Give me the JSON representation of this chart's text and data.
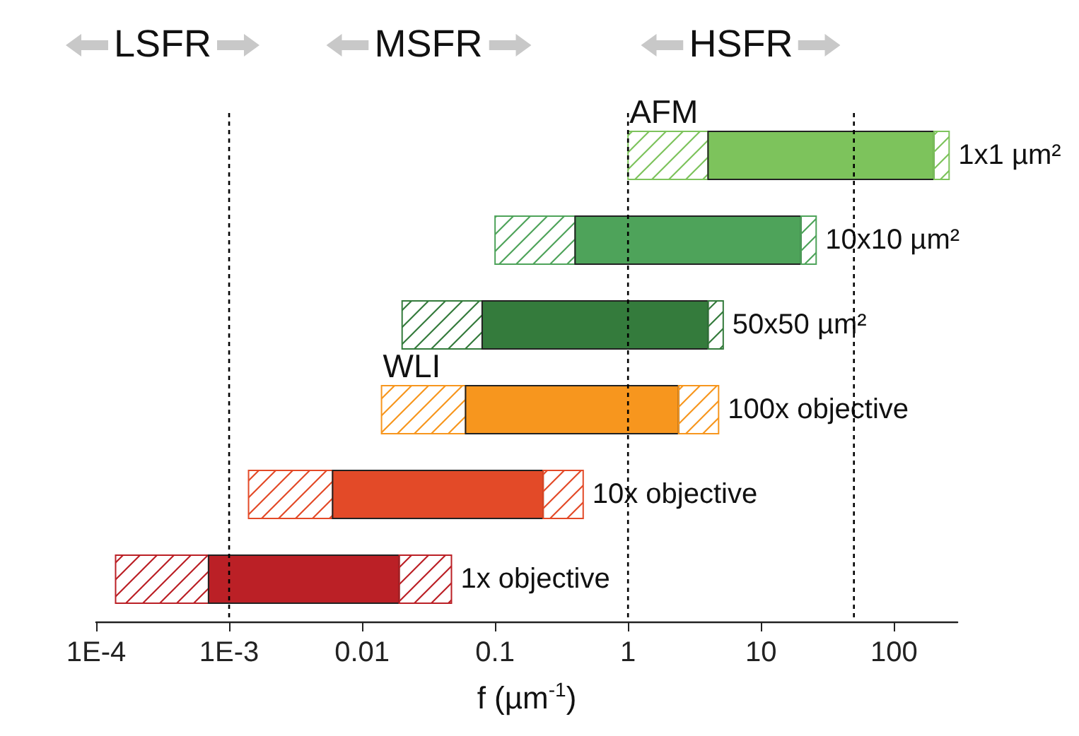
{
  "chart_data": {
    "type": "bar",
    "orientation": "horizontal",
    "categories": [
      "1x1 µm²",
      "10x10 µm²",
      "50x50 µm²",
      "100x objective",
      "10x objective",
      "1x objective"
    ],
    "series": [
      {
        "colors": [
          "#7dc35c",
          "#4ea35a",
          "#347b3c",
          "#f7961e",
          "#e34a28",
          "#bb2026"
        ],
        "base": [
          1,
          0.1,
          0.02,
          0.014,
          0.0014,
          0.00014
        ],
        "values": [
          3,
          0.3,
          0.06,
          0.046,
          0.0046,
          0.00056
        ]
      },
      {
        "colors": [
          "#7dc35c",
          "#4ea35a",
          "#347b3c",
          "#f7961e",
          "#e34a28",
          "#bb2026"
        ],
        "base": [
          4,
          0.4,
          0.08,
          0.06,
          0.006,
          0.0007
        ],
        "values": [
          196,
          19.6,
          3.92,
          2.34,
          0.224,
          0.0183
        ]
      },
      {
        "colors": [
          "#7dc35c",
          "#4ea35a",
          "#347b3c",
          "#f7961e",
          "#e34a28",
          "#bb2026"
        ],
        "base": [
          200,
          20,
          4,
          2.4,
          0.23,
          0.019
        ],
        "values": [
          60,
          6,
          1.2,
          2.4,
          0.23,
          0.028
        ]
      }
    ],
    "xlabel": "f (µm$^{-1}$)",
    "log": "x",
    "xlim": [
      0.0001,
      300
    ],
    "xticks": [
      {
        "value": 0.0001,
        "label": "1E-4"
      },
      {
        "value": 0.001,
        "label": "1E-3"
      },
      0.01,
      0.1,
      1,
      10,
      100
    ],
    "ref_lines": [
      {
        "axis": "x",
        "value": 0.001,
        "line_style": "dashed",
        "color": "#000000"
      },
      {
        "axis": "x",
        "value": 1,
        "line_style": "dashed",
        "color": "#000000"
      },
      {
        "axis": "x",
        "value": 50,
        "line_style": "dashed",
        "color": "#000000"
      }
    ],
    "annotations": [
      "LSFR",
      "MSFR",
      "HSFR",
      {
        "text": "AFM",
        "x": 1,
        "y": "1x1 µm²"
      },
      {
        "text": "WLI",
        "x": 0.014,
        "y": "100x objective"
      }
    ],
    "tick_labels": "x",
    "grid": false
  }
}
